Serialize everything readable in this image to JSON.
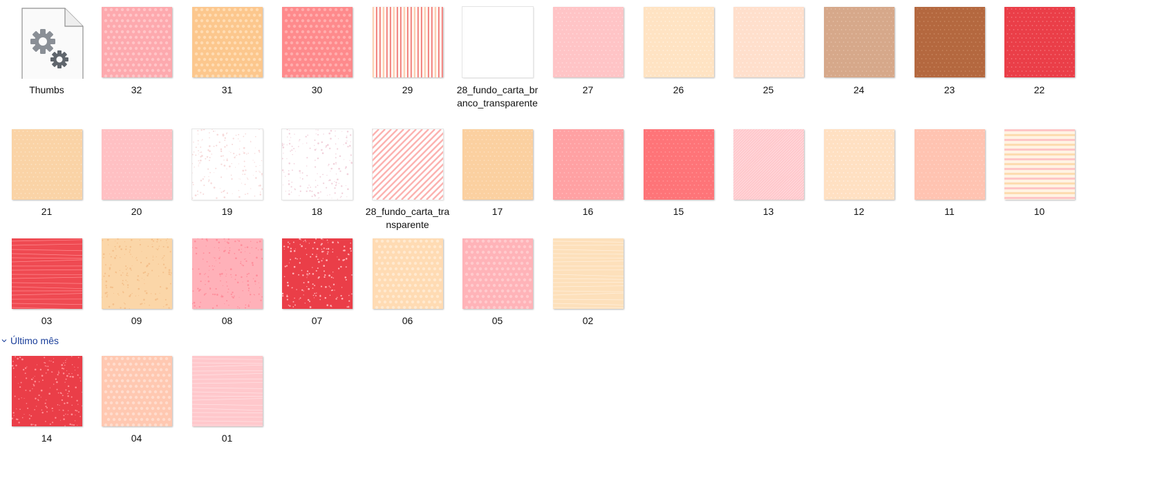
{
  "files": [
    {
      "label": "Thumbs",
      "type": "settings-file",
      "colors": [
        "#ffffff"
      ]
    },
    {
      "label": "32",
      "pattern": "dots",
      "colors": [
        "#fda9ae",
        "#ffc4c7"
      ]
    },
    {
      "label": "31",
      "pattern": "dots",
      "colors": [
        "#fcc78d",
        "#ffdcb3"
      ]
    },
    {
      "label": "30",
      "pattern": "dots",
      "colors": [
        "#fe8a8c",
        "#ffadad"
      ]
    },
    {
      "label": "29",
      "pattern": "vstripes",
      "colors": [
        "#fff6ef",
        "#f06f6c",
        "#fcc5a2"
      ]
    },
    {
      "label": "28_fundo_carta_branco_transparente",
      "pattern": "blank",
      "colors": [
        "#ffffff"
      ]
    },
    {
      "label": "27",
      "pattern": "texture",
      "colors": [
        "#ffc4c6",
        "#ffd9da"
      ]
    },
    {
      "label": "26",
      "pattern": "texture",
      "colors": [
        "#ffe3c3",
        "#fff1df"
      ]
    },
    {
      "label": "25",
      "pattern": "texture",
      "colors": [
        "#ffdfcc",
        "#fff0e6"
      ]
    },
    {
      "label": "24",
      "pattern": "texture",
      "colors": [
        "#d6a88a",
        "#e4bfa6"
      ]
    },
    {
      "label": "23",
      "pattern": "texture",
      "colors": [
        "#b4683f",
        "#c98660"
      ]
    },
    {
      "label": "22",
      "pattern": "texture",
      "colors": [
        "#ea3e48",
        "#f4737a"
      ]
    },
    {
      "label": "21",
      "pattern": "texture",
      "colors": [
        "#fad3a6",
        "#fde3c3"
      ]
    },
    {
      "label": "20",
      "pattern": "texture",
      "colors": [
        "#ffc0c3",
        "#ffd1d3"
      ]
    },
    {
      "label": "19",
      "pattern": "speckle",
      "colors": [
        "#ffffff",
        "#f7dada"
      ]
    },
    {
      "label": "18",
      "pattern": "speckle",
      "colors": [
        "#ffffff",
        "#f2d2dc"
      ]
    },
    {
      "label": "28_fundo_carta_transparente",
      "pattern": "dstripes",
      "colors": [
        "#ffffff",
        "#fcb2b0"
      ]
    },
    {
      "label": "17",
      "pattern": "texture",
      "colors": [
        "#fbd0a0",
        "#fde0bf"
      ]
    },
    {
      "label": "16",
      "pattern": "texture",
      "colors": [
        "#ffa1a3",
        "#ffbcbd"
      ]
    },
    {
      "label": "15",
      "pattern": "texture",
      "colors": [
        "#fe7478",
        "#ff9597"
      ]
    },
    {
      "label": "13",
      "pattern": "dstripes-fine",
      "colors": [
        "#ffc7cb",
        "#ffdfe1"
      ]
    },
    {
      "label": "12",
      "pattern": "texture",
      "colors": [
        "#ffe0c2",
        "#fff0e2"
      ]
    },
    {
      "label": "11",
      "pattern": "texture",
      "colors": [
        "#ffc3b1",
        "#ffd5c8"
      ]
    },
    {
      "label": "10",
      "pattern": "hstripes",
      "colors": [
        "#fff3e3",
        "#ffc5c5",
        "#fddcb0"
      ]
    },
    {
      "label": "03",
      "pattern": "lines",
      "colors": [
        "#ef4a52",
        "#ff8c90"
      ]
    },
    {
      "label": "09",
      "pattern": "speckle",
      "colors": [
        "#fbd6a8",
        "#f4bf8a"
      ]
    },
    {
      "label": "08",
      "pattern": "speckle",
      "colors": [
        "#ffb1b9",
        "#ff8e9b"
      ]
    },
    {
      "label": "07",
      "pattern": "speckle",
      "colors": [
        "#ea3e48",
        "#ffb3b7"
      ]
    },
    {
      "label": "06",
      "pattern": "dots",
      "colors": [
        "#ffdbb3",
        "#ffe9cf"
      ]
    },
    {
      "label": "05",
      "pattern": "dots",
      "colors": [
        "#ffb3b8",
        "#ffcacd"
      ]
    },
    {
      "label": "02",
      "pattern": "lines",
      "colors": [
        "#fde0bb",
        "#fff0de"
      ]
    },
    {
      "label": "14",
      "pattern": "speckle",
      "colors": [
        "#ea3e48",
        "#ff8f94"
      ]
    },
    {
      "label": "04",
      "pattern": "dots",
      "colors": [
        "#ffc8b1",
        "#ffdccd"
      ]
    },
    {
      "label": "01",
      "pattern": "lines",
      "colors": [
        "#ffc8cc",
        "#ffe3e5"
      ]
    }
  ],
  "group_header": {
    "label": "Último mês"
  },
  "icons": {
    "file_icon": "settings-file-icon",
    "chevron": "chevron-down-icon"
  }
}
